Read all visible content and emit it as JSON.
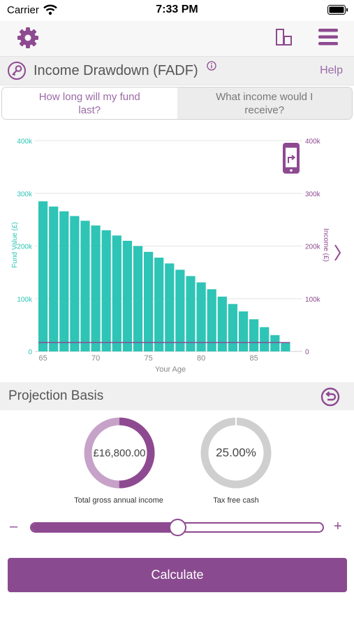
{
  "status": {
    "carrier": "Carrier",
    "time": "7:33 PM"
  },
  "toolbar": {
    "settings_icon": "gear-icon",
    "compare_icon": "compare-icon",
    "menu_icon": "hamburger-menu-icon"
  },
  "titlebar": {
    "title": "Income Drawdown (FADF)",
    "help": "Help"
  },
  "tabs": [
    {
      "label": "How long will my fund last?",
      "active": true
    },
    {
      "label": "What income would I receive?",
      "active": false
    }
  ],
  "chart_data": {
    "type": "bar",
    "xlabel": "Your Age",
    "ylabel_left": "Fund Value (£)",
    "ylabel_right": "Income (£)",
    "x_ticks": [
      "65",
      "70",
      "75",
      "80",
      "85"
    ],
    "y_ticks": [
      "0",
      "100k",
      "200k",
      "300k",
      "400k"
    ],
    "ylim": [
      0,
      400000
    ],
    "grid": true,
    "categories": [
      65,
      66,
      67,
      68,
      69,
      70,
      71,
      72,
      73,
      74,
      75,
      76,
      77,
      78,
      79,
      80,
      81,
      82,
      83,
      84,
      85,
      86,
      87,
      88
    ],
    "series": [
      {
        "values": [
          285000,
          275000,
          266000,
          257000,
          248000,
          239000,
          230000,
          220000,
          210000,
          200000,
          189000,
          178000,
          167000,
          155000,
          143000,
          131000,
          118000,
          104000,
          90000,
          76000,
          61000,
          46000,
          31000,
          16000
        ]
      },
      {
        "values": [
          16800,
          16800,
          16800,
          16800,
          16800,
          16800,
          16800,
          16800,
          16800,
          16800,
          16800,
          16800,
          16800,
          16800,
          16800,
          16800,
          16800,
          16800,
          16800,
          16800,
          16800,
          16800,
          16800,
          16800
        ]
      }
    ],
    "colors": {
      "bars": "#2ec4b6",
      "line": "#8e4a91"
    },
    "rotate_icon": "rotate-phone-icon",
    "next_icon": "chevron-right-icon"
  },
  "basis": {
    "title": "Projection Basis",
    "reset_icon": "undo-icon"
  },
  "gauges": {
    "income": {
      "value": "£16,800.00",
      "label": "Total gross annual income",
      "fraction": 0.5
    },
    "tax": {
      "value": "25.00%",
      "label": "Tax free cash",
      "fraction": 0.0
    }
  },
  "slider": {
    "minus": "–",
    "plus": "+",
    "fraction": 0.5
  },
  "calculate": "Calculate",
  "colors": {
    "accent": "#8e4a91",
    "teal": "#2ec4b6"
  }
}
